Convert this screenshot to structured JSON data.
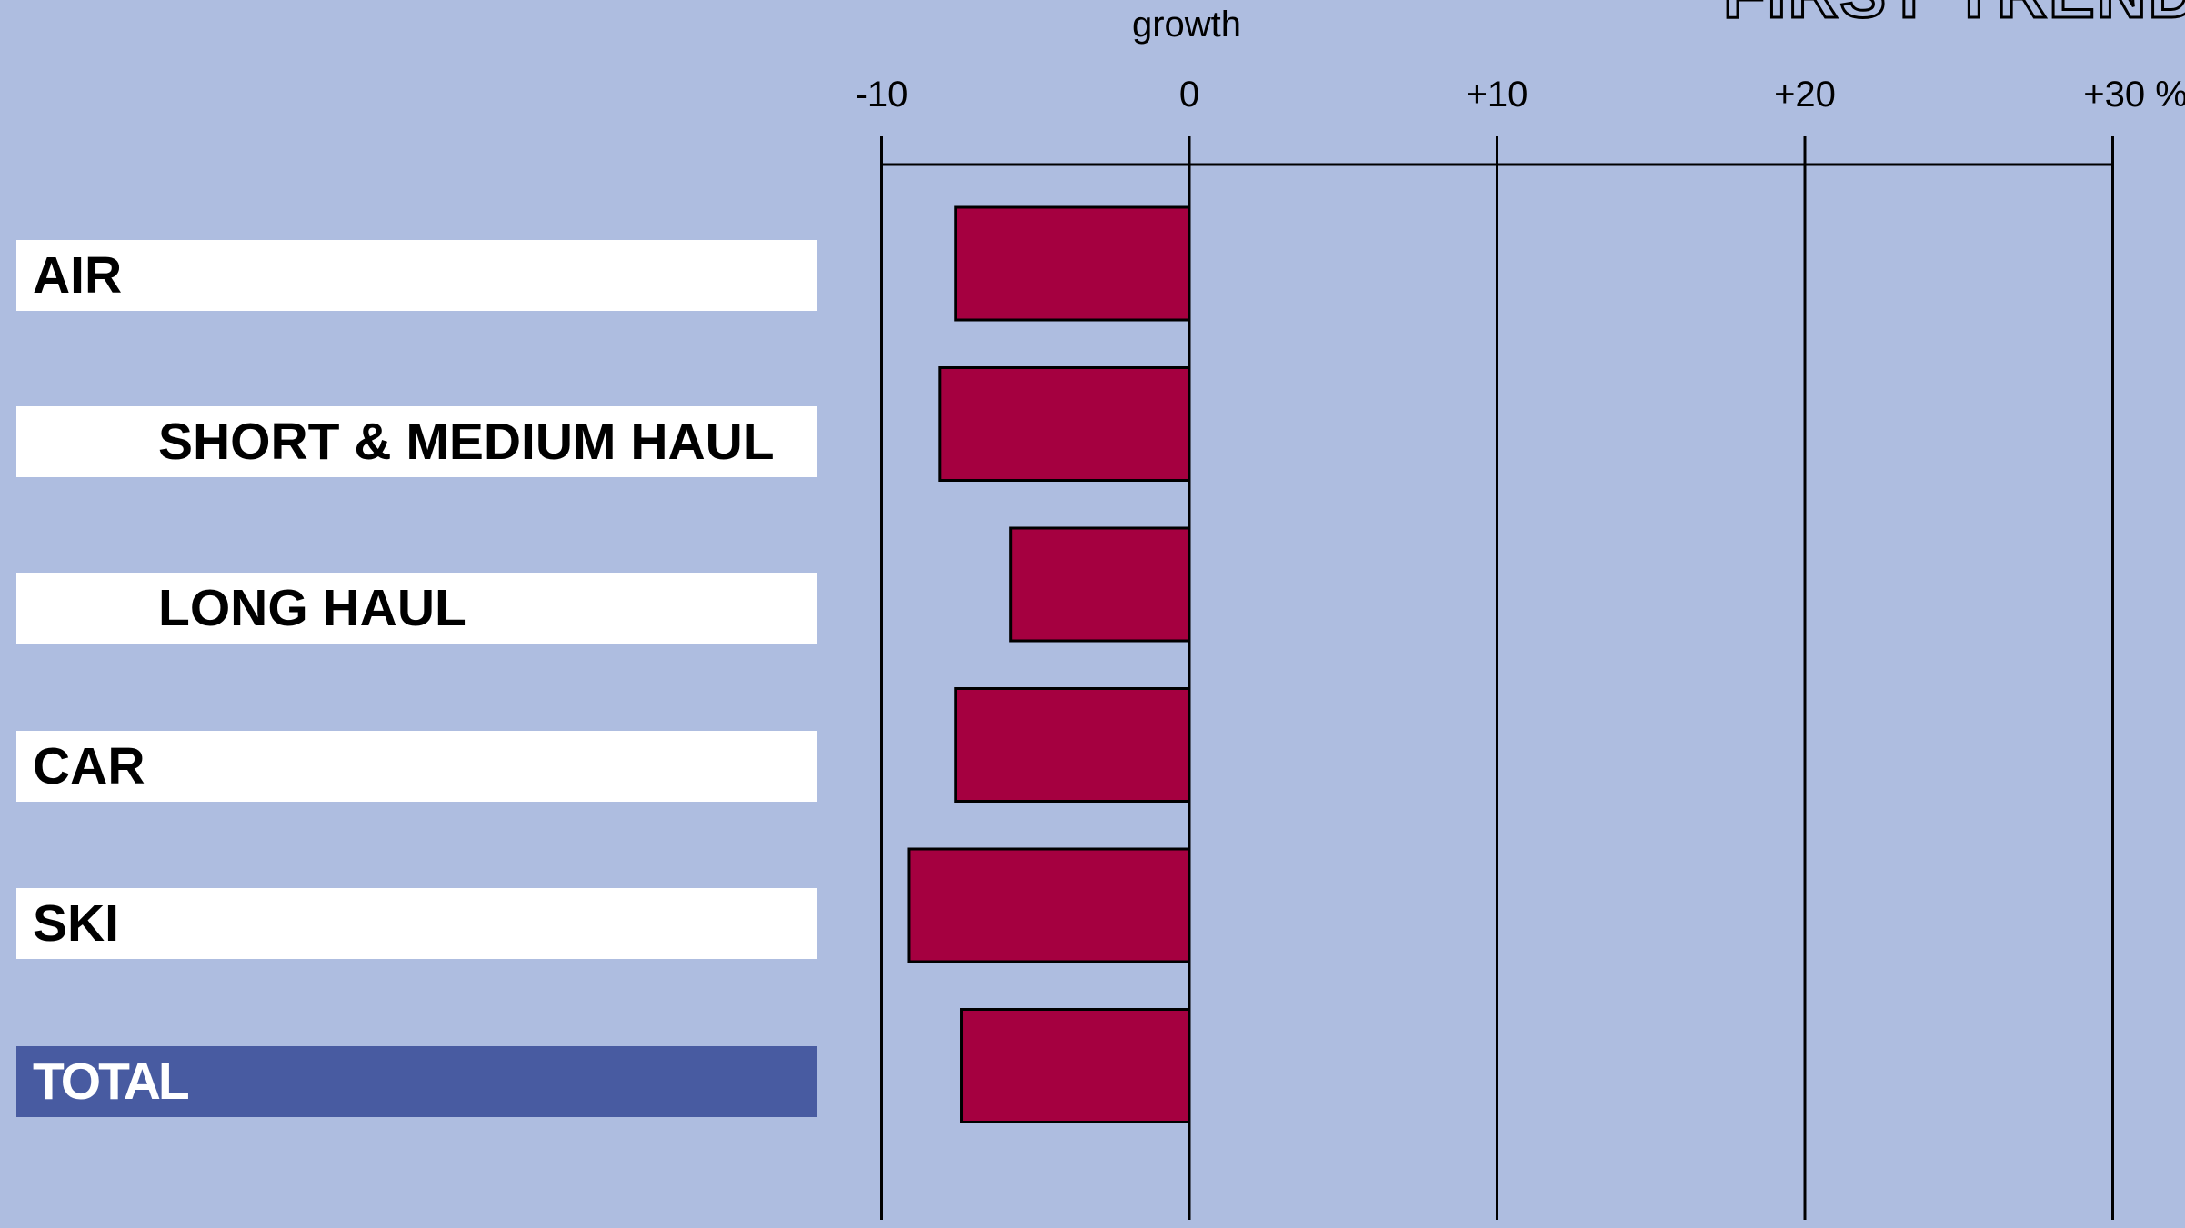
{
  "chart_data": {
    "type": "bar",
    "orientation": "horizontal",
    "title": "FIRST TRENDS",
    "xlabel": "growth",
    "x_unit": "%",
    "xlim": [
      -10,
      30
    ],
    "xticks": [
      -10,
      0,
      10,
      20,
      30
    ],
    "xtick_labels": [
      "-10",
      "0",
      "+10",
      "+20",
      "+30 %"
    ],
    "categories": [
      "AIR",
      "SHORT & MEDIUM HAUL",
      "LONG HAUL",
      "CAR",
      "SKI",
      "TOTAL"
    ],
    "category_indented": [
      false,
      true,
      true,
      false,
      false,
      false
    ],
    "values": [
      -7.6,
      -8.1,
      -5.8,
      -7.6,
      -9.1,
      -7.4
    ],
    "grid": "vertical lines at ticks",
    "legend": "none"
  },
  "colors": {
    "background": "#aebde0",
    "bar_fill": "#a50040",
    "label_box": "#ffffff",
    "total_box": "#485ba1",
    "total_text": "#ffffff",
    "axis": "#000000"
  }
}
